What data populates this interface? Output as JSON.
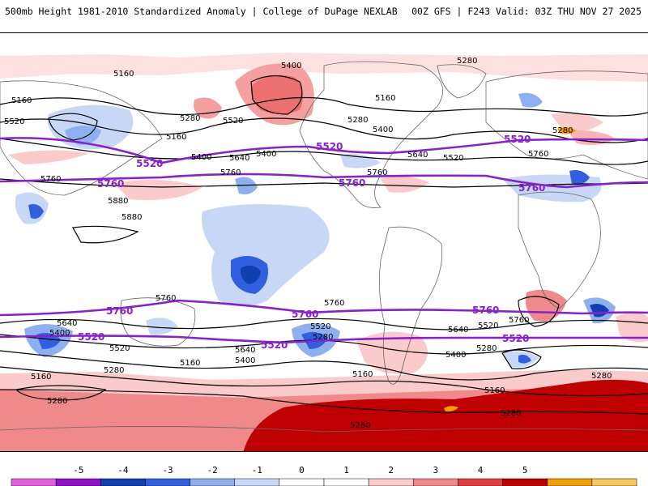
{
  "header": {
    "title_left": "500mb Height 1981-2010 Standardized Anomaly | College of DuPage NEXLAB",
    "title_right": "00Z GFS | F243 Valid: 03Z THU NOV 27 2025"
  },
  "map": {
    "projection": "cylindrical-equidistant",
    "field": "500mb height standardized anomaly",
    "contour_labels": {
      "5160": "5160",
      "5280": "5280",
      "5400": "5400",
      "5520": "5520",
      "5640": "5640",
      "5760": "5760",
      "5880": "5880"
    },
    "highlight_contours": [
      "5520",
      "5760"
    ],
    "colors": {
      "highlight_contour": "#8a1fd0",
      "contour": "#000000",
      "coastline": "#666666"
    }
  },
  "colorbar": {
    "ticks": [
      "-5",
      "-4",
      "-3",
      "-2",
      "-1",
      "0",
      "1",
      "2",
      "3",
      "4",
      "5"
    ],
    "colors": [
      "#e060e0",
      "#9010c8",
      "#1040b0",
      "#3060e0",
      "#8fb0ee",
      "#c7d8f6",
      "#ffffff",
      "#ffffff",
      "#fbcaca",
      "#f08a8a",
      "#e04040",
      "#c00000",
      "#f0a000",
      "#f7c860"
    ]
  }
}
